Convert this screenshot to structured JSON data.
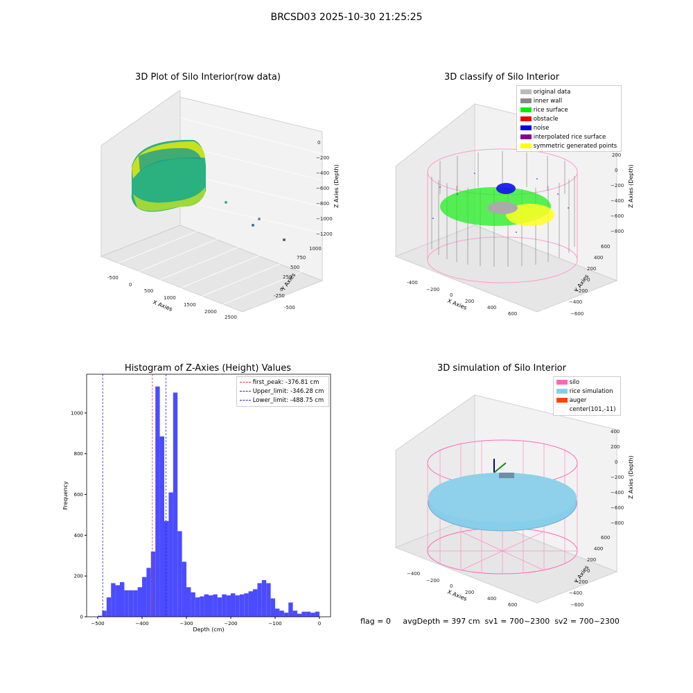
{
  "suptitle": "BRCSD03 2025-10-30 21:25:25",
  "status_line": "flag = 0     avgDepth = 397 cm  sv1 = 700~2300  sv2 = 700~2300",
  "colors": {
    "hist_bar": "#4c4cff",
    "first_peak": "#e03030",
    "limit_line": "#2222dd",
    "silo": "#ff69b4",
    "rice_simulation": "#87ceeb",
    "auger": "#ff4500",
    "original": "#bbbbbb",
    "inner_wall": "#888888",
    "rice_surface": "#00ee00",
    "obstacle": "#ee0000",
    "noise": "#0000ee",
    "interpolated": "#880088",
    "symmetric": "#ffff00"
  },
  "chart_data": [
    {
      "type": "scatter",
      "title": "3D Plot of Silo Interior(row data)",
      "xlabel": "X Axies",
      "ylabel": "Y Axies",
      "zlabel": "Z Axies (Depth)",
      "x_ticks": [
        "-500",
        "0",
        "500",
        "1000",
        "1500",
        "2000",
        "2500"
      ],
      "y_ticks": [
        "-500",
        "-250",
        "0",
        "250",
        "500",
        "750",
        "1000"
      ],
      "z_ticks": [
        "0",
        "−200",
        "−400",
        "−600",
        "−800",
        "−1000",
        "−1200"
      ],
      "xlim": [
        -600,
        2600
      ],
      "ylim": [
        -600,
        1100
      ],
      "zlim": [
        -1250,
        50
      ]
    },
    {
      "type": "scatter",
      "title": "3D classify of Silo Interior",
      "xlabel": "X Axies",
      "ylabel": "Y Axies",
      "zlabel": "Z Axies (Depth)",
      "x_ticks": [
        "-400",
        "−200",
        "0",
        "200",
        "400",
        "600"
      ],
      "y_ticks": [
        "−600",
        "−400",
        "−200",
        "0",
        "200",
        "400",
        "600"
      ],
      "z_ticks": [
        "200",
        "0",
        "−200",
        "−400",
        "−600",
        "−800"
      ],
      "legend_position": "top-right",
      "legend": [
        "original data",
        "inner wall",
        "rice surface",
        "obstacle",
        "noise",
        "interpolated rice surface",
        "symmetric generated points"
      ]
    },
    {
      "type": "bar",
      "title": "Histogram of Z-Axies (Height) Values",
      "xlabel": "Depth (cm)",
      "ylabel": "Frequency",
      "xlim": [
        -525,
        25
      ],
      "ylim": [
        0,
        1190
      ],
      "x_ticks": [
        -500,
        -400,
        -300,
        -200,
        -100,
        0
      ],
      "x_tick_labels": [
        "−500",
        "−400",
        "−300",
        "−200",
        "−100",
        "0"
      ],
      "y_ticks": [
        0,
        200,
        400,
        600,
        800,
        1000
      ],
      "bin_start": -500,
      "bin_width": 10,
      "values": [
        5,
        30,
        95,
        165,
        155,
        170,
        130,
        130,
        130,
        145,
        195,
        240,
        320,
        1130,
        885,
        470,
        610,
        1100,
        420,
        270,
        145,
        120,
        95,
        100,
        110,
        105,
        110,
        95,
        110,
        105,
        115,
        105,
        110,
        115,
        125,
        135,
        165,
        180,
        165,
        90,
        40,
        30,
        20,
        70,
        30,
        15,
        25,
        25,
        20,
        25
      ],
      "vlines": [
        {
          "x": -376.81,
          "label": "first_peak: -376.81 cm",
          "color": "#e03030"
        },
        {
          "x": -346.28,
          "label": "Upper_limit: -346.28 cm",
          "color": "#2222dd"
        },
        {
          "x": -488.75,
          "label": "Lower_limit: -488.75 cm",
          "color": "#2222dd"
        }
      ],
      "legend_position": "top-right",
      "grid": false
    },
    {
      "type": "scatter",
      "title": "3D simulation of Silo Interior",
      "xlabel": "X Axies",
      "ylabel": "Y Axies",
      "zlabel": "Z Axies (Depth)",
      "x_ticks": [
        "−400",
        "−200",
        "0",
        "200",
        "400",
        "600"
      ],
      "y_ticks": [
        "−600",
        "−400",
        "−200",
        "0",
        "200",
        "400",
        "600"
      ],
      "z_ticks": [
        "400",
        "200",
        "0",
        "−200",
        "−400",
        "−600",
        "−800"
      ],
      "legend_position": "top-right",
      "legend": [
        "silo",
        "rice simulation",
        "auger",
        "center(101,-11)"
      ]
    }
  ]
}
